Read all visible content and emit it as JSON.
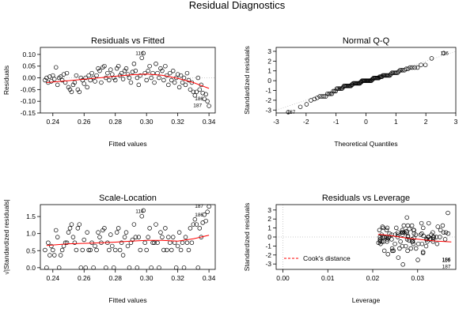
{
  "figure_title": "Residual Diagnostics",
  "chart_data": [
    {
      "id": "rvf",
      "type": "scatter",
      "title": "Residuals vs Fitted",
      "xlabel": "Fitted values",
      "ylabel": "Residuals",
      "xlim": [
        0.232,
        0.344
      ],
      "ylim": [
        -0.15,
        0.13
      ],
      "xticks": [
        "0.24",
        "0.26",
        "0.28",
        "0.30",
        "0.32",
        "0.34"
      ],
      "xtick_values": [
        0.24,
        0.26,
        0.28,
        0.3,
        0.32,
        0.34
      ],
      "yticks": [
        "-0.15",
        "-0.10",
        "-0.05",
        "0.00",
        "0.05",
        "0.10"
      ],
      "ytick_values": [
        -0.15,
        -0.1,
        -0.05,
        0.0,
        0.05,
        0.1
      ],
      "reference_line": {
        "y": 0,
        "style": "dotted"
      },
      "smoother": [
        [
          0.236,
          -0.02
        ],
        [
          0.25,
          -0.012
        ],
        [
          0.265,
          -0.003
        ],
        [
          0.28,
          0.007
        ],
        [
          0.29,
          0.013
        ],
        [
          0.3,
          0.016
        ],
        [
          0.31,
          0.011
        ],
        [
          0.32,
          -0.002
        ],
        [
          0.33,
          -0.02
        ],
        [
          0.34,
          -0.045
        ]
      ],
      "points": [
        [
          0.235,
          -0.01
        ],
        [
          0.236,
          0.0
        ],
        [
          0.237,
          -0.02
        ],
        [
          0.238,
          0.005
        ],
        [
          0.239,
          -0.015
        ],
        [
          0.24,
          0.01
        ],
        [
          0.241,
          -0.005
        ],
        [
          0.242,
          0.045
        ],
        [
          0.243,
          -0.03
        ],
        [
          0.244,
          0.0
        ],
        [
          0.245,
          0.005
        ],
        [
          0.246,
          -0.01
        ],
        [
          0.247,
          0.015
        ],
        [
          0.248,
          -0.02
        ],
        [
          0.249,
          0.02
        ],
        [
          0.25,
          -0.04
        ],
        [
          0.251,
          -0.05
        ],
        [
          0.252,
          -0.06
        ],
        [
          0.253,
          -0.03
        ],
        [
          0.254,
          -0.02
        ],
        [
          0.255,
          0.01
        ],
        [
          0.256,
          -0.05
        ],
        [
          0.257,
          -0.06
        ],
        [
          0.258,
          0.0
        ],
        [
          0.259,
          -0.01
        ],
        [
          0.26,
          -0.025
        ],
        [
          0.261,
          0.0
        ],
        [
          0.262,
          -0.04
        ],
        [
          0.263,
          0.01
        ],
        [
          0.264,
          -0.01
        ],
        [
          0.265,
          0.02
        ],
        [
          0.266,
          0.0
        ],
        [
          0.267,
          -0.015
        ],
        [
          0.268,
          0.01
        ],
        [
          0.269,
          0.04
        ],
        [
          0.27,
          0.03
        ],
        [
          0.271,
          -0.02
        ],
        [
          0.272,
          0.045
        ],
        [
          0.273,
          0.05
        ],
        [
          0.274,
          0.0
        ],
        [
          0.275,
          0.02
        ],
        [
          0.276,
          -0.01
        ],
        [
          0.277,
          0.035
        ],
        [
          0.278,
          0.015
        ],
        [
          0.279,
          0.0
        ],
        [
          0.28,
          -0.01
        ],
        [
          0.281,
          0.04
        ],
        [
          0.282,
          0.05
        ],
        [
          0.283,
          0.01
        ],
        [
          0.284,
          0.02
        ],
        [
          0.285,
          -0.005
        ],
        [
          0.286,
          0.03
        ],
        [
          0.287,
          0.04
        ],
        [
          0.288,
          0.015
        ],
        [
          0.289,
          0.0
        ],
        [
          0.29,
          -0.02
        ],
        [
          0.291,
          0.025
        ],
        [
          0.292,
          0.06
        ],
        [
          0.293,
          0.03
        ],
        [
          0.294,
          0.0
        ],
        [
          0.295,
          -0.03
        ],
        [
          0.296,
          0.01
        ],
        [
          0.297,
          0.085
        ],
        [
          0.298,
          0.105
        ],
        [
          0.299,
          0.02
        ],
        [
          0.3,
          -0.01
        ],
        [
          0.301,
          0.03
        ],
        [
          0.302,
          0.05
        ],
        [
          0.303,
          0.0
        ],
        [
          0.304,
          0.02
        ],
        [
          0.305,
          -0.02
        ],
        [
          0.306,
          0.06
        ],
        [
          0.307,
          0.02
        ],
        [
          0.308,
          0.0
        ],
        [
          0.309,
          0.04
        ],
        [
          0.31,
          0.03
        ],
        [
          0.311,
          -0.01
        ],
        [
          0.312,
          0.05
        ],
        [
          0.313,
          0.01
        ],
        [
          0.314,
          -0.03
        ],
        [
          0.315,
          0.02
        ],
        [
          0.316,
          -0.01
        ],
        [
          0.317,
          0.03
        ],
        [
          0.318,
          -0.02
        ],
        [
          0.319,
          0.0
        ],
        [
          0.32,
          0.015
        ],
        [
          0.321,
          -0.04
        ],
        [
          0.322,
          0.01
        ],
        [
          0.323,
          -0.02
        ],
        [
          0.324,
          0.0
        ],
        [
          0.325,
          -0.03
        ],
        [
          0.326,
          0.02
        ],
        [
          0.327,
          -0.01
        ],
        [
          0.328,
          -0.05
        ],
        [
          0.329,
          -0.02
        ],
        [
          0.33,
          -0.06
        ],
        [
          0.331,
          -0.075
        ],
        [
          0.332,
          -0.06
        ],
        [
          0.333,
          0.0
        ],
        [
          0.334,
          -0.05
        ],
        [
          0.335,
          -0.03
        ],
        [
          0.336,
          -0.065
        ],
        [
          0.337,
          -0.09
        ],
        [
          0.338,
          -0.07
        ],
        [
          0.339,
          -0.1
        ],
        [
          0.34,
          -0.12
        ]
      ],
      "point_labels": [
        {
          "text": "116",
          "x": 0.298,
          "y": 0.105
        },
        {
          "text": "186",
          "x": 0.336,
          "y": -0.09
        },
        {
          "text": "187",
          "x": 0.335,
          "y": -0.118
        }
      ]
    },
    {
      "id": "qq",
      "type": "scatter",
      "title": "Normal Q-Q",
      "xlabel": "Theoretical Quantiles",
      "ylabel": "Standardized residuals",
      "xlim": [
        -3,
        3
      ],
      "ylim": [
        -3.3,
        3.4
      ],
      "xticks": [
        "-3",
        "-2",
        "-1",
        "0",
        "1",
        "2",
        "3"
      ],
      "xtick_values": [
        -3,
        -2,
        -1,
        0,
        1,
        2,
        3
      ],
      "yticks": [
        "-3",
        "-2",
        "-1",
        "0",
        "1",
        "2",
        "3"
      ],
      "ytick_values": [
        -3,
        -2,
        -1,
        0,
        1,
        2,
        3
      ],
      "reference_line": {
        "slope": 1,
        "intercept": 0,
        "style": "dotted"
      },
      "point_labels": [
        {
          "text": "116",
          "x": 2.75,
          "y": 2.8
        },
        {
          "text": "187",
          "x": -2.75,
          "y": -3.2
        }
      ]
    },
    {
      "id": "sl",
      "type": "scatter",
      "title": "Scale-Location",
      "xlabel": "Fitted values",
      "ylabel": "√|Standardized residuals|",
      "xlim": [
        0.232,
        0.344
      ],
      "ylim": [
        -0.05,
        1.85
      ],
      "xticks": [
        "0.24",
        "0.26",
        "0.28",
        "0.30",
        "0.32",
        "0.34"
      ],
      "xtick_values": [
        0.24,
        0.26,
        0.28,
        0.3,
        0.32,
        0.34
      ],
      "yticks": [
        "0.0",
        "0.5",
        "1.0",
        "1.5"
      ],
      "ytick_values": [
        0.0,
        0.5,
        1.0,
        1.5
      ],
      "smoother": [
        [
          0.236,
          0.65
        ],
        [
          0.25,
          0.7
        ],
        [
          0.265,
          0.72
        ],
        [
          0.28,
          0.75
        ],
        [
          0.29,
          0.78
        ],
        [
          0.3,
          0.8
        ],
        [
          0.31,
          0.8
        ],
        [
          0.32,
          0.78
        ],
        [
          0.33,
          0.85
        ],
        [
          0.34,
          0.95
        ]
      ],
      "point_labels": [
        {
          "text": "116",
          "x": 0.298,
          "y": 1.65
        },
        {
          "text": "186",
          "x": 0.336,
          "y": 1.55
        },
        {
          "text": "187",
          "x": 0.336,
          "y": 1.8
        }
      ]
    },
    {
      "id": "rvl",
      "type": "scatter",
      "title": "Residuals vs Leverage",
      "xlabel": "Leverage",
      "ylabel": "Standardized residuals",
      "xlim": [
        -0.0015,
        0.0385
      ],
      "ylim": [
        -3.6,
        3.6
      ],
      "xticks": [
        "0.00",
        "0.01",
        "0.02",
        "0.03"
      ],
      "xtick_values": [
        0.0,
        0.01,
        0.02,
        0.03
      ],
      "yticks": [
        "-3",
        "-2",
        "-1",
        "0",
        "1",
        "2",
        "3"
      ],
      "ytick_values": [
        -3,
        -2,
        -1,
        0,
        1,
        2,
        3
      ],
      "reference_lines": [
        {
          "y": 0,
          "style": "dotted"
        },
        {
          "x": 0,
          "style": "dotted"
        }
      ],
      "smoother": [
        [
          0.0212,
          0.3
        ],
        [
          0.0225,
          0.25
        ],
        [
          0.024,
          0.15
        ],
        [
          0.026,
          0.0
        ],
        [
          0.028,
          -0.15
        ],
        [
          0.03,
          -0.25
        ],
        [
          0.032,
          -0.35
        ],
        [
          0.034,
          -0.45
        ],
        [
          0.036,
          -0.5
        ],
        [
          0.0375,
          -0.55
        ]
      ],
      "legend": {
        "label": "Cook's distance",
        "placement": "bottom-left",
        "line_style": "dashed",
        "color": "#ff0000"
      },
      "point_labels": [
        {
          "text": "186",
          "x": 0.0372,
          "y": -2.5
        },
        {
          "text": "116",
          "x": 0.0372,
          "y": -2.6
        },
        {
          "text": "187",
          "x": 0.0372,
          "y": -3.3
        }
      ]
    }
  ],
  "colors": {
    "smoother": "#ff0000",
    "reference": "#bfbfbf",
    "points": "#000000"
  }
}
